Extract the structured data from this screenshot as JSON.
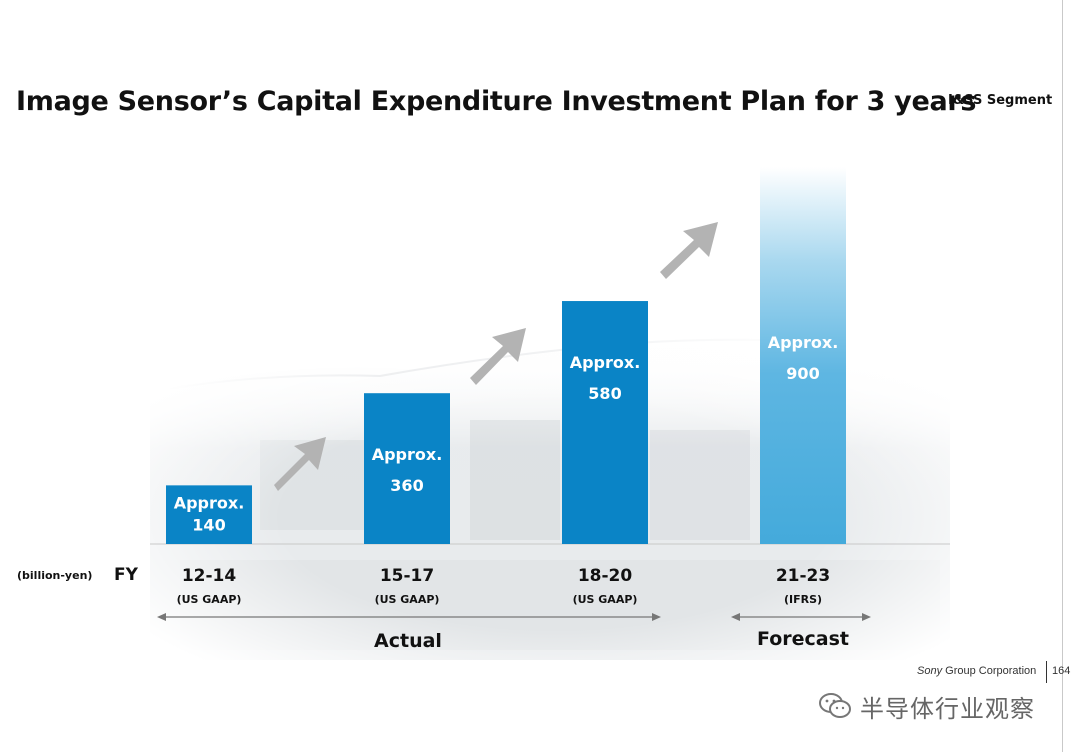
{
  "slide": {
    "title": "Image Sensor’s Capital Expenditure Investment Plan for 3 years",
    "segment": "I&SS Segment",
    "unit_label": "(billion-yen)",
    "fy_label": "FY",
    "actual_label": "Actual",
    "forecast_label": "Forecast",
    "footer_corp_italic": "Sony",
    "footer_corp_rest": "Group Corporation",
    "page_number": "164",
    "watermark_text": "半导体行业观察",
    "colors": {
      "actual_bar": "#0a84c6",
      "forecast_bar_top": "#ffffff",
      "forecast_bar_bottom": "#4aaedd",
      "arrow": "#b3b3b3",
      "bar_text": "#ffffff"
    }
  },
  "chart_data": {
    "type": "bar",
    "categories": [
      "12-14",
      "15-17",
      "18-20",
      "21-23"
    ],
    "category_notes": [
      "(US GAAP)",
      "(US GAAP)",
      "(US GAAP)",
      "(IFRS)"
    ],
    "values": [
      140,
      360,
      580,
      900
    ],
    "value_prefix": "Approx.",
    "bar_labels": [
      {
        "prefix": "Approx.",
        "value": "140"
      },
      {
        "prefix": "Approx.",
        "value": "360"
      },
      {
        "prefix": "Approx.",
        "value": "580"
      },
      {
        "prefix": "Approx.",
        "value": "900"
      }
    ],
    "ylabel": "(billion-yen)",
    "xlabel": "FY",
    "groups": [
      {
        "label": "Actual",
        "categories": [
          "12-14",
          "15-17",
          "18-20"
        ]
      },
      {
        "label": "Forecast",
        "categories": [
          "21-23"
        ]
      }
    ],
    "ylim": [
      0,
      900
    ],
    "grid": false,
    "legend": "none"
  }
}
